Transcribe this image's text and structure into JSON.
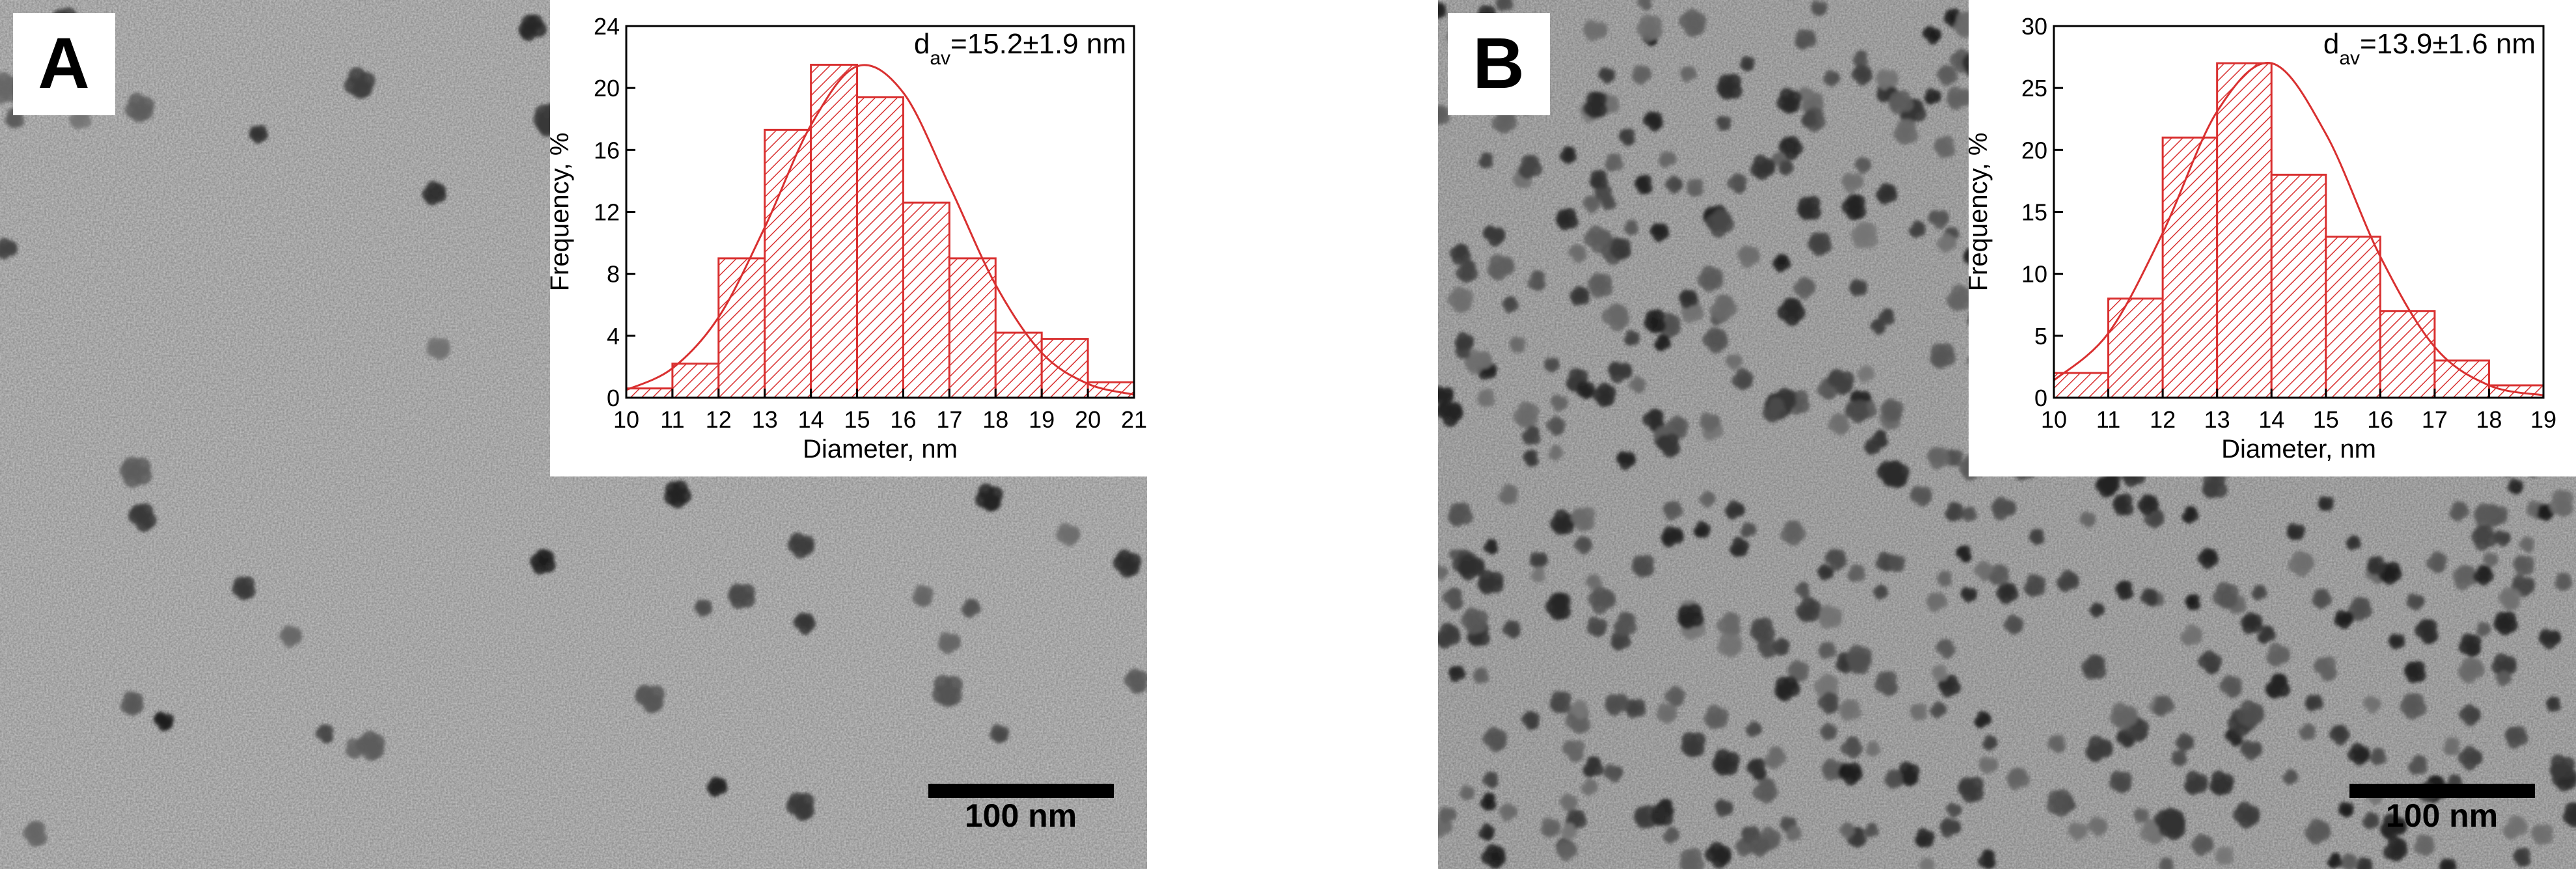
{
  "panels": [
    {
      "label": "A",
      "scale_bar": "100 nm"
    },
    {
      "label": "B",
      "scale_bar": "100 nm"
    }
  ],
  "chart_data": [
    {
      "type": "histogram",
      "x_label": "Diameter, nm",
      "y_label": "Frequency, %",
      "annotation": [
        "d",
        "av",
        "=15.2±1.9 nm"
      ],
      "bins": [
        10,
        11,
        12,
        13,
        14,
        15,
        16,
        17,
        18,
        19,
        20,
        21
      ],
      "values": [
        0.6,
        2.2,
        9,
        17.3,
        21.5,
        19.4,
        12.6,
        9,
        4.2,
        3.8,
        1
      ],
      "color": "#d93030",
      "fit": {
        "x": [
          10,
          11,
          12,
          13,
          14,
          15,
          16,
          17,
          18,
          19,
          20,
          21
        ],
        "values": [
          0.5,
          1.9,
          5.2,
          11,
          17.6,
          21.4,
          19.7,
          13.7,
          7.3,
          2.9,
          0.9,
          0.2
        ]
      },
      "xlim": [
        10,
        21
      ],
      "xticks": [
        10,
        11,
        12,
        13,
        14,
        15,
        16,
        17,
        18,
        19,
        20,
        21
      ],
      "ylim": [
        0,
        24
      ],
      "yticks": [
        0,
        4,
        8,
        12,
        16,
        20,
        24
      ]
    },
    {
      "type": "histogram",
      "x_label": "Diameter, nm",
      "y_label": "Frequency, %",
      "annotation": [
        "d",
        "av",
        "=13.9±1.6 nm"
      ],
      "bins": [
        10,
        11,
        12,
        13,
        14,
        15,
        16,
        17,
        18,
        19
      ],
      "values": [
        2,
        8,
        21,
        27,
        18,
        13,
        7,
        3,
        1
      ],
      "color": "#d93030",
      "fit": {
        "x": [
          10,
          11,
          12,
          13,
          14,
          15,
          16,
          17,
          18,
          19
        ],
        "values": [
          1.4,
          5.2,
          13.3,
          23.1,
          27,
          21.3,
          11.4,
          4.1,
          1,
          0.2
        ]
      },
      "xlim": [
        10,
        19
      ],
      "xticks": [
        10,
        11,
        12,
        13,
        14,
        15,
        16,
        17,
        18,
        19
      ],
      "ylim": [
        0,
        30
      ],
      "yticks": [
        0,
        5,
        10,
        15,
        20,
        25,
        30
      ]
    }
  ]
}
